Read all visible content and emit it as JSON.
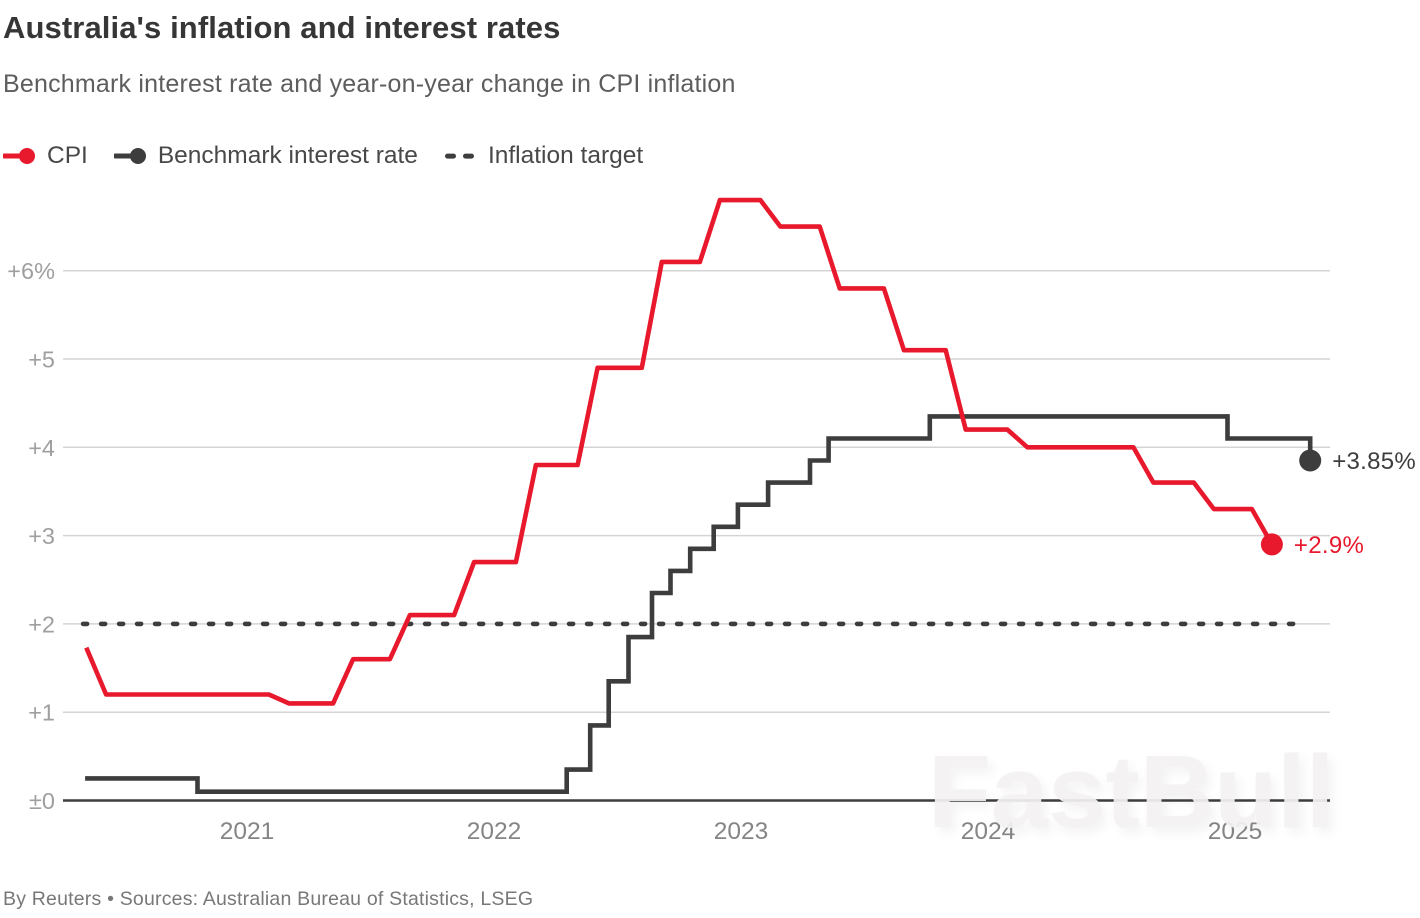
{
  "header": {
    "title": "Australia's inflation and interest rates",
    "subtitle": "Benchmark interest rate and year-on-year change in CPI inflation"
  },
  "legend": {
    "items": [
      {
        "id": "cpi",
        "label": "CPI",
        "color": "#e8192c",
        "marker": "line-dot"
      },
      {
        "id": "rate",
        "label": "Benchmark interest rate",
        "color": "#3d3d3d",
        "marker": "line-dot"
      },
      {
        "id": "target",
        "label": "Inflation target",
        "color": "#3d3d3d",
        "marker": "dashes"
      }
    ]
  },
  "chart_data": {
    "type": "line",
    "title": "Australia's inflation and interest rates",
    "subtitle": "Benchmark interest rate and year-on-year change in CPI inflation",
    "x_axis": {
      "ticks": [
        {
          "label": "2021",
          "t": 2021
        },
        {
          "label": "2022",
          "t": 2022
        },
        {
          "label": "2023",
          "t": 2023
        },
        {
          "label": "2024",
          "t": 2024
        },
        {
          "label": "2025",
          "t": 2025
        }
      ],
      "range": [
        2020.29,
        2025.45
      ]
    },
    "y_axis": {
      "unit": "percent year-on-year",
      "ticks": [
        {
          "label": "+6%",
          "v": 6
        },
        {
          "label": "+5",
          "v": 5
        },
        {
          "label": "+4",
          "v": 4
        },
        {
          "label": "+3",
          "v": 3
        },
        {
          "label": "+2",
          "v": 2
        },
        {
          "label": "+1",
          "v": 1
        },
        {
          "label": "±0",
          "v": 0
        }
      ],
      "range": [
        0,
        6.9
      ],
      "grid": true
    },
    "legend_position": "top-left",
    "series": [
      {
        "id": "target",
        "name": "Inflation target",
        "style": "dashed-horizontal",
        "color": "#3d3d3d",
        "value": 2,
        "x_range": [
          2020.377,
          2025.3
        ]
      },
      {
        "id": "rate",
        "name": "Benchmark interest rate",
        "style": "step",
        "color": "#3d3d3d",
        "end_label": "+3.85%",
        "points": [
          [
            2020.385,
            0.25
          ],
          [
            2020.84,
            0.1
          ],
          [
            2022.335,
            0.35
          ],
          [
            2022.43,
            0.85
          ],
          [
            2022.505,
            1.35
          ],
          [
            2022.585,
            1.85
          ],
          [
            2022.68,
            2.35
          ],
          [
            2022.755,
            2.6
          ],
          [
            2022.835,
            2.85
          ],
          [
            2022.93,
            3.1
          ],
          [
            2023.028,
            3.35
          ],
          [
            2023.15,
            3.6
          ],
          [
            2023.32,
            3.85
          ],
          [
            2023.395,
            4.1
          ],
          [
            2023.805,
            4.35
          ],
          [
            2025.01,
            4.1
          ],
          [
            2025.345,
            3.85
          ]
        ]
      },
      {
        "id": "cpi",
        "name": "CPI",
        "style": "step-ramp",
        "color": "#e8192c",
        "end_label": "+2.9%",
        "points": [
          [
            2020.39,
            1.73
          ],
          [
            2020.47,
            1.2
          ],
          [
            2020.72,
            1.2
          ],
          [
            2020.97,
            1.2
          ],
          [
            2021.21,
            1.1
          ],
          [
            2021.47,
            1.6
          ],
          [
            2021.7,
            2.1
          ],
          [
            2021.96,
            2.7
          ],
          [
            2022.21,
            3.8
          ],
          [
            2022.46,
            4.9
          ],
          [
            2022.72,
            6.1
          ],
          [
            2022.955,
            6.8
          ],
          [
            2023.2,
            6.5
          ],
          [
            2023.44,
            5.8
          ],
          [
            2023.7,
            5.1
          ],
          [
            2023.95,
            4.2
          ],
          [
            2024.2,
            4.0
          ],
          [
            2024.45,
            4.0
          ],
          [
            2024.71,
            3.6
          ],
          [
            2024.955,
            3.3
          ],
          [
            2025.19,
            2.9
          ]
        ]
      }
    ]
  },
  "watermark": "FastBull",
  "footer": "By Reuters • Sources: Australian Bureau of Statistics, LSEG"
}
